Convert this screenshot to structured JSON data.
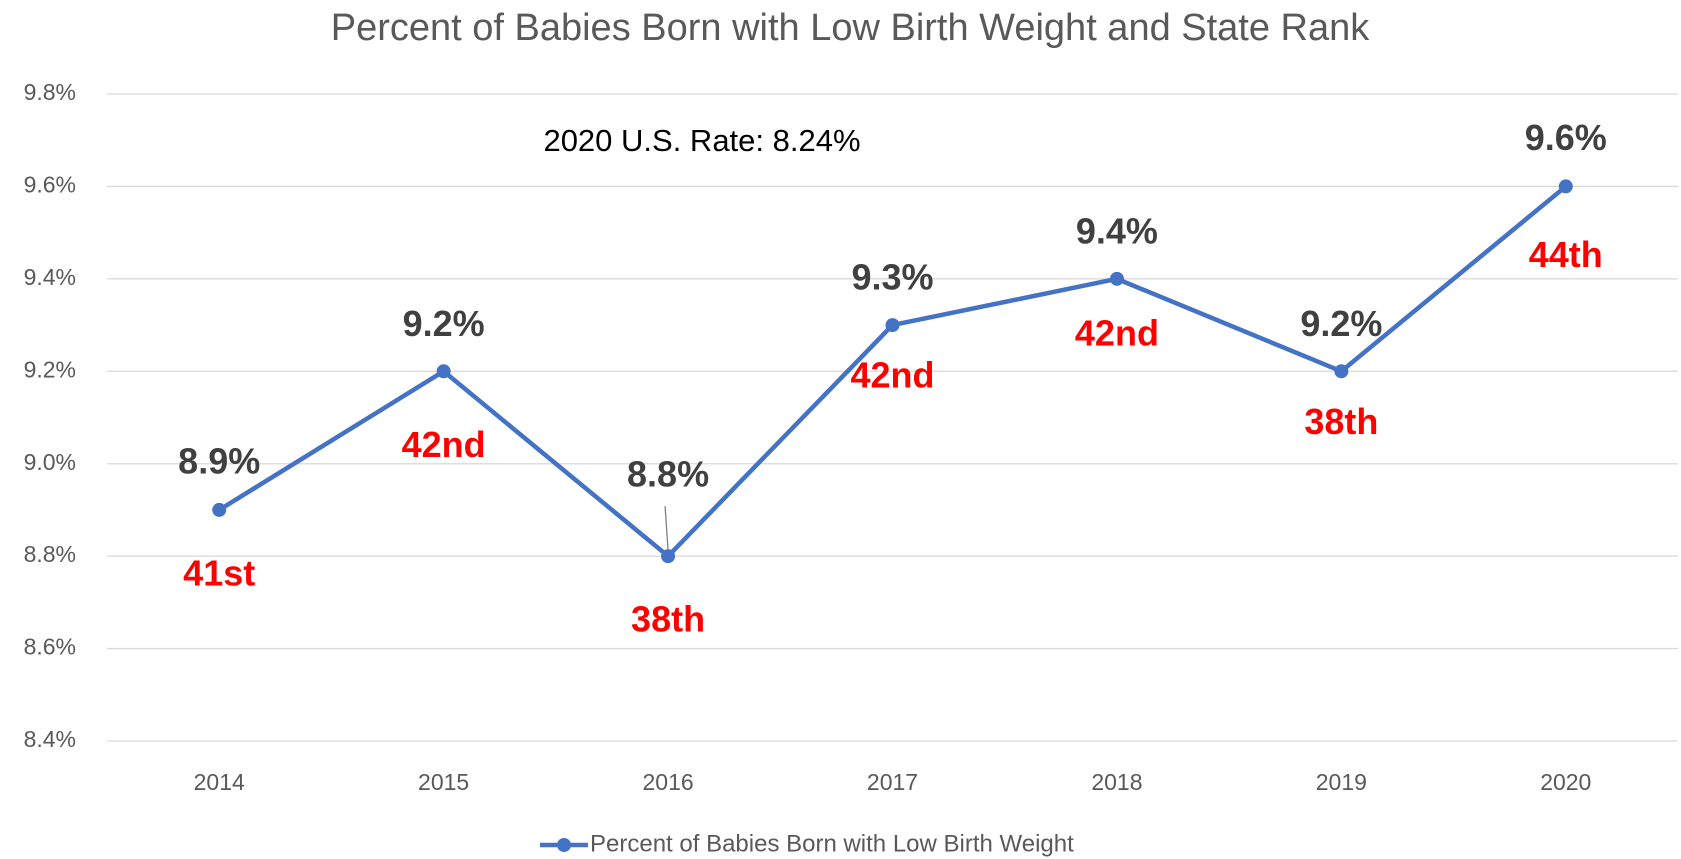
{
  "chart_data": {
    "type": "line",
    "title": "Percent of Babies Born with Low Birth Weight and State Rank",
    "annotation": "2020 U.S. Rate: 8.24%",
    "categories": [
      "2014",
      "2015",
      "2016",
      "2017",
      "2018",
      "2019",
      "2020"
    ],
    "series": [
      {
        "name": "Percent of Babies Born with Low Birth Weight",
        "color": "#4472c4",
        "values": [
          8.9,
          9.2,
          8.8,
          9.3,
          9.4,
          9.2,
          9.6
        ],
        "value_labels": [
          "8.9%",
          "9.2%",
          "8.8%",
          "9.3%",
          "9.4%",
          "9.2%",
          "9.6%"
        ]
      }
    ],
    "rank_labels": [
      "41st",
      "42nd",
      "38th",
      "42nd",
      "42nd",
      "38th",
      "44th"
    ],
    "rank_color": "#ff0000",
    "ylim": [
      8.4,
      9.8
    ],
    "yticks": [
      {
        "value": 8.4,
        "label": "8.4%"
      },
      {
        "value": 8.6,
        "label": "8.6%"
      },
      {
        "value": 8.8,
        "label": "8.8%"
      },
      {
        "value": 9.0,
        "label": "9.0%"
      },
      {
        "value": 9.2,
        "label": "9.2%"
      },
      {
        "value": 9.4,
        "label": "9.4%"
      },
      {
        "value": 9.6,
        "label": "9.6%"
      },
      {
        "value": 9.8,
        "label": "9.8%"
      }
    ],
    "grid": true
  }
}
